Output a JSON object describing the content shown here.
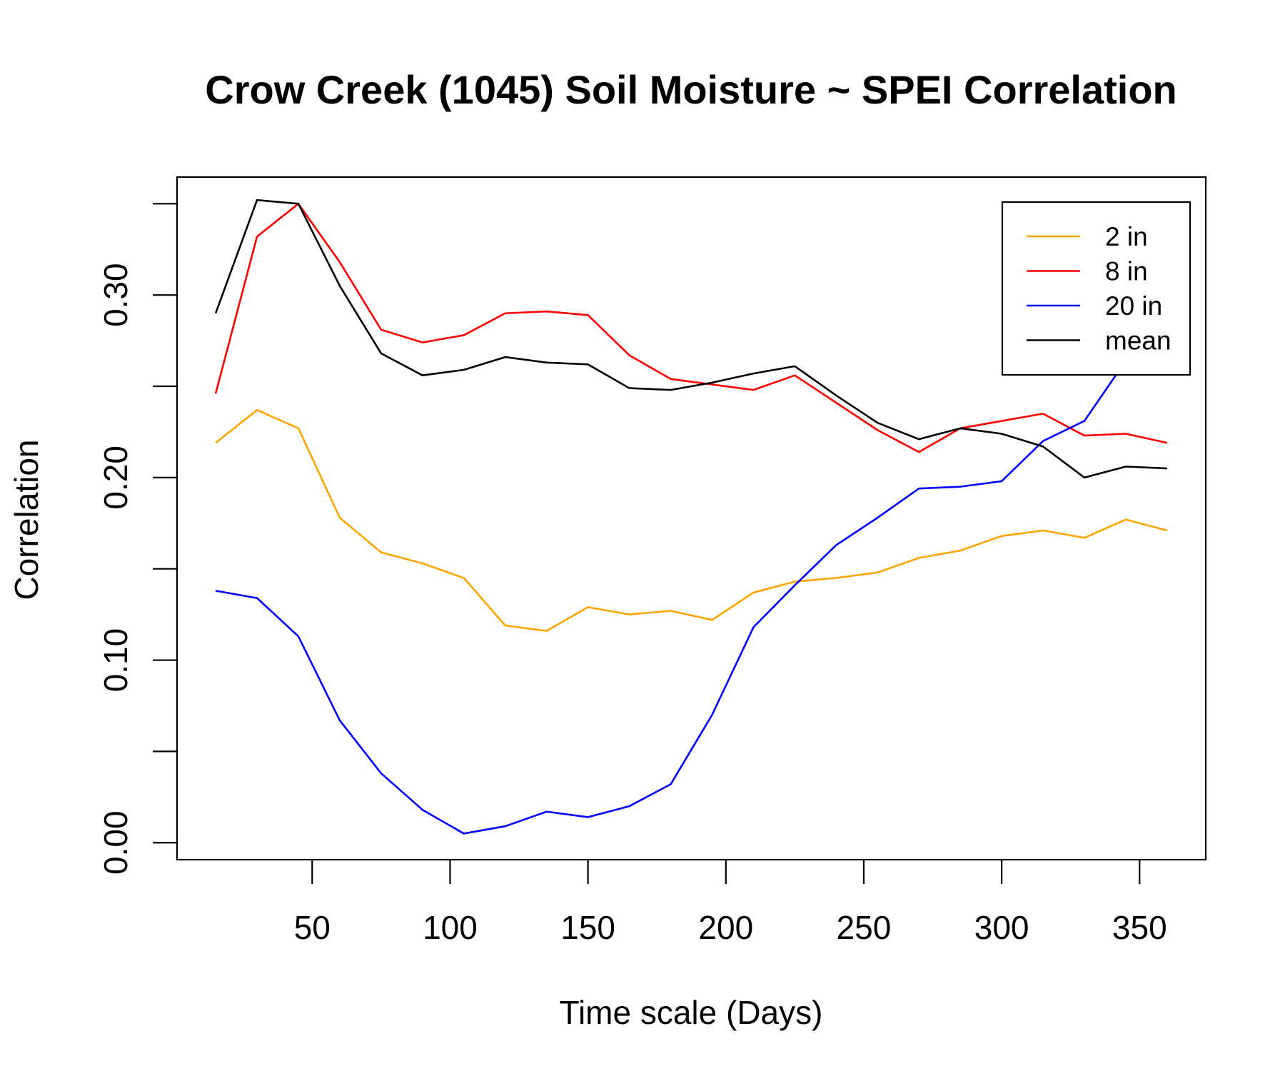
{
  "chart_data": {
    "type": "line",
    "title": "Crow Creek (1045) Soil Moisture ~ SPEI Correlation",
    "xlabel": "Time scale (Days)",
    "ylabel": "Correlation",
    "xlim": [
      1,
      374
    ],
    "ylim": [
      -0.0093,
      0.3646
    ],
    "x_ticks": [
      50,
      100,
      150,
      200,
      250,
      300,
      350
    ],
    "x_tick_labels": [
      "50",
      "100",
      "150",
      "200",
      "250",
      "300",
      "350"
    ],
    "y_ticks": [
      0.0,
      0.05,
      0.1,
      0.15,
      0.2,
      0.25,
      0.3,
      0.35
    ],
    "y_tick_labels": [
      "0.00",
      "",
      "0.10",
      "",
      "0.20",
      "",
      "0.30",
      ""
    ],
    "grid": false,
    "legend_position": "top-right",
    "x": [
      15,
      30,
      45,
      60,
      75,
      90,
      105,
      120,
      135,
      150,
      165,
      180,
      195,
      210,
      225,
      240,
      255,
      270,
      285,
      300,
      315,
      330,
      345,
      360
    ],
    "series": [
      {
        "name": "2 in",
        "color": "#FFA500",
        "values": [
          0.219,
          0.237,
          0.227,
          0.178,
          0.159,
          0.153,
          0.145,
          0.119,
          0.116,
          0.129,
          0.125,
          0.127,
          0.122,
          0.137,
          0.143,
          0.145,
          0.148,
          0.156,
          0.16,
          0.168,
          0.171,
          0.167,
          0.177,
          0.171
        ]
      },
      {
        "name": "8 in",
        "color": "#FF0000",
        "values": [
          0.246,
          0.332,
          0.35,
          0.318,
          0.281,
          0.274,
          0.278,
          0.29,
          0.291,
          0.289,
          0.267,
          0.254,
          0.251,
          0.248,
          0.256,
          0.241,
          0.226,
          0.214,
          0.227,
          0.231,
          0.235,
          0.223,
          0.224,
          0.219
        ]
      },
      {
        "name": "20 in",
        "color": "#0000FF",
        "values": [
          0.138,
          0.134,
          0.113,
          0.067,
          0.038,
          0.018,
          0.005,
          0.009,
          0.017,
          0.014,
          0.02,
          0.032,
          0.07,
          0.118,
          0.141,
          0.163,
          0.178,
          0.194,
          0.195,
          0.198,
          0.22,
          0.231,
          0.264,
          0.3
        ]
      },
      {
        "name": "mean",
        "color": "#000000",
        "values": [
          0.29,
          0.352,
          0.35,
          0.305,
          0.268,
          0.256,
          0.259,
          0.266,
          0.263,
          0.262,
          0.249,
          0.248,
          0.252,
          0.257,
          0.261,
          0.245,
          0.23,
          0.221,
          0.227,
          0.224,
          0.217,
          0.2,
          0.206,
          0.205
        ]
      }
    ]
  }
}
